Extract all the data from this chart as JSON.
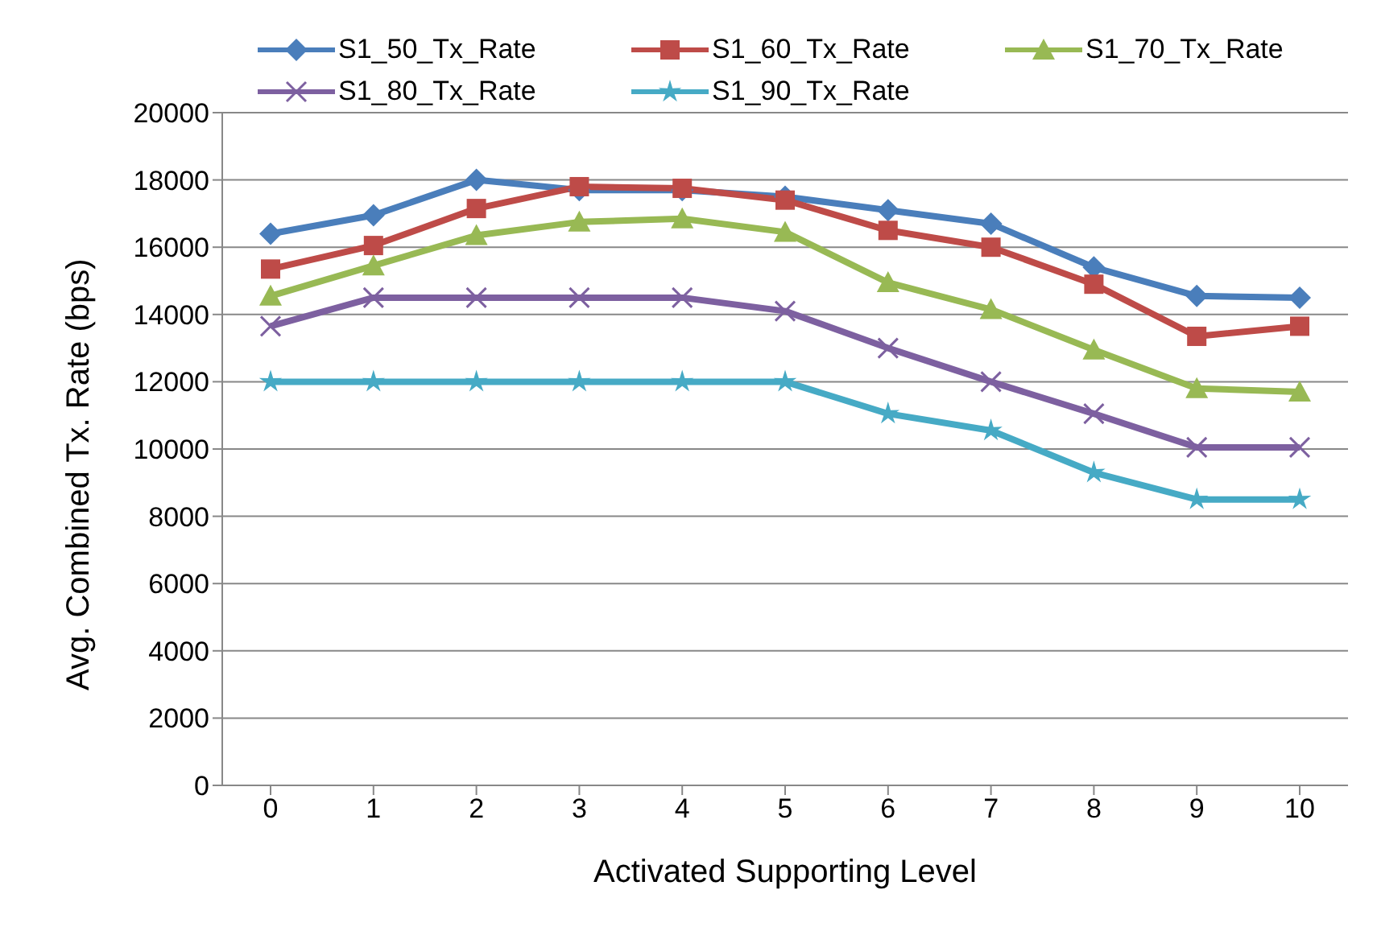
{
  "chart_data": {
    "type": "line",
    "xlabel": "Activated Supporting Level",
    "ylabel": "Avg. Combined Tx. Rate (bps)",
    "categories": [
      "0",
      "1",
      "2",
      "3",
      "4",
      "5",
      "6",
      "7",
      "8",
      "9",
      "10"
    ],
    "series": [
      {
        "name": "S1_50_Tx_Rate",
        "color": "#4a7ebb",
        "marker": "diamond",
        "values": [
          16400,
          16950,
          18000,
          17700,
          17700,
          17500,
          17100,
          16700,
          15400,
          14550,
          14500
        ]
      },
      {
        "name": "S1_60_Tx_Rate",
        "color": "#be4b48",
        "marker": "square",
        "values": [
          15350,
          16050,
          17150,
          17800,
          17750,
          17400,
          16500,
          16000,
          14900,
          13350,
          13650
        ]
      },
      {
        "name": "S1_70_Tx_Rate",
        "color": "#98b954",
        "marker": "triangle",
        "values": [
          14550,
          15450,
          16350,
          16750,
          16850,
          16450,
          14950,
          14150,
          12950,
          11800,
          11700
        ]
      },
      {
        "name": "S1_80_Tx_Rate",
        "color": "#7d60a0",
        "marker": "cross",
        "values": [
          13650,
          14500,
          14500,
          14500,
          14500,
          14100,
          13000,
          12000,
          11050,
          10050,
          10050
        ]
      },
      {
        "name": "S1_90_Tx_Rate",
        "color": "#46aac5",
        "marker": "star",
        "values": [
          12000,
          12000,
          12000,
          12000,
          12000,
          12000,
          11050,
          10550,
          9300,
          8500,
          8500
        ]
      }
    ],
    "ylim": [
      0,
      20000
    ],
    "yticks": [
      0,
      2000,
      4000,
      6000,
      8000,
      10000,
      12000,
      14000,
      16000,
      18000,
      20000
    ],
    "grid": "y",
    "legend": "top",
    "line_style": "solid"
  }
}
